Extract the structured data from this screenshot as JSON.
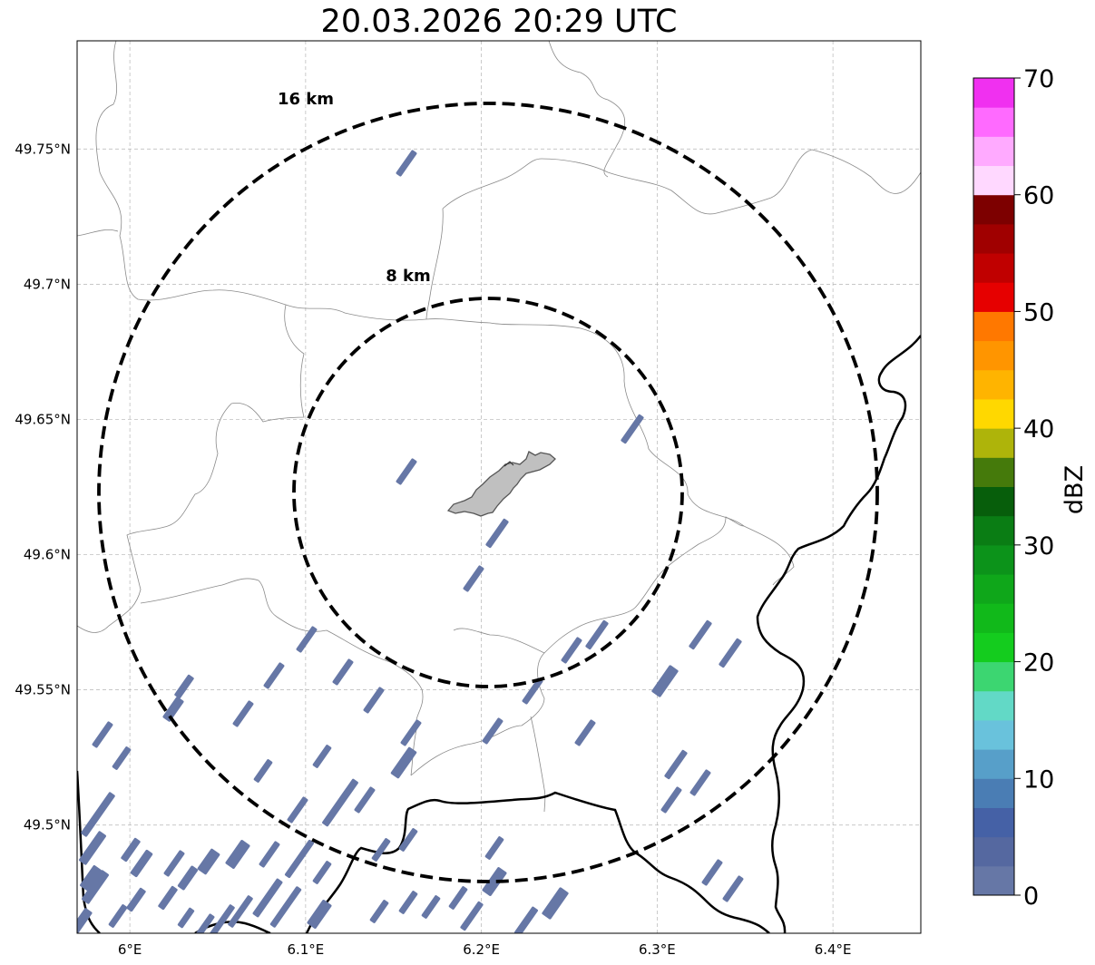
{
  "title": "20.03.2026 20:29 UTC",
  "map": {
    "lon_range": [
      5.97,
      6.45
    ],
    "lat_range": [
      49.46,
      49.79
    ],
    "lon_ticks": [
      {
        "value": 6.0,
        "label": "6°E"
      },
      {
        "value": 6.1,
        "label": "6.1°E"
      },
      {
        "value": 6.2,
        "label": "6.2°E"
      },
      {
        "value": 6.3,
        "label": "6.3°E"
      },
      {
        "value": 6.4,
        "label": "6.4°E"
      }
    ],
    "lat_ticks": [
      {
        "value": 49.75,
        "label": "49.75°N"
      },
      {
        "value": 49.7,
        "label": "49.7°N"
      },
      {
        "value": 49.65,
        "label": "49.65°N"
      },
      {
        "value": 49.6,
        "label": "49.6°N"
      },
      {
        "value": 49.55,
        "label": "49.55°N"
      },
      {
        "value": 49.5,
        "label": "49.5°N"
      }
    ],
    "grid": true,
    "rings": [
      {
        "label": "8 km",
        "radius_km": 8
      },
      {
        "label": "16 km",
        "radius_km": 16
      }
    ],
    "center": {
      "lon": 6.203,
      "lat": 49.623
    },
    "echo_color": "#6677a6",
    "city_fill": "#c0c0c0"
  },
  "colorbar": {
    "label": "dBZ",
    "min": 0,
    "max": 70,
    "ticks": [
      "0",
      "10",
      "20",
      "30",
      "40",
      "50",
      "60",
      "70"
    ],
    "colors": [
      "#6677a6",
      "#5568a0",
      "#4561a6",
      "#4a7db4",
      "#579fc9",
      "#69c2dc",
      "#62d9c6",
      "#3cd671",
      "#14cc1e",
      "#11b91a",
      "#0fa71a",
      "#0c931a",
      "#0a7d14",
      "#075e0b",
      "#457a0b",
      "#aeb40a",
      "#ffd800",
      "#ffb400",
      "#ff9500",
      "#ff7800",
      "#e60000",
      "#c00000",
      "#a00000",
      "#7d0000",
      "#ffd8ff",
      "#ffaaff",
      "#ff6aff",
      "#f030f0"
    ]
  }
}
